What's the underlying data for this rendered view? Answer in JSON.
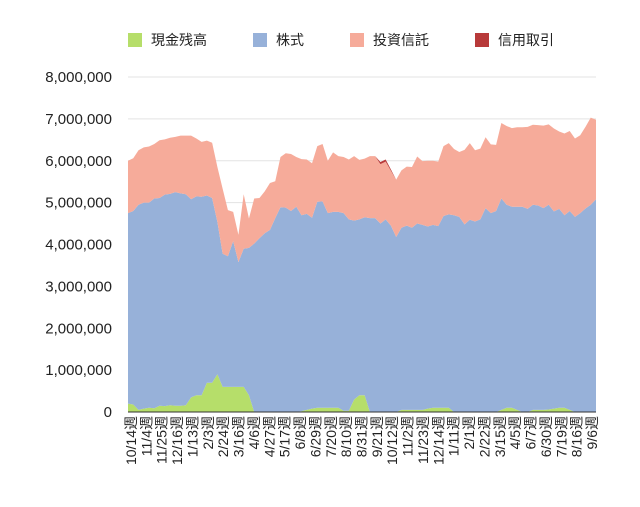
{
  "colors": {
    "cash": "#b6de6a",
    "stocks": "#97b1d9",
    "trusts": "#f6ab9a",
    "margin": "#b83a3a",
    "grid": "#e3e3e3",
    "axis": "#333333",
    "text": "#222222"
  },
  "chart_data": {
    "type": "area",
    "stacked": true,
    "title": "",
    "xlabel": "",
    "ylabel": "",
    "ylim": [
      0,
      8000000
    ],
    "yticks": [
      0,
      1000000,
      2000000,
      3000000,
      4000000,
      5000000,
      6000000,
      7000000,
      8000000
    ],
    "ytick_labels": [
      "0",
      "1,000,000",
      "2,000,000",
      "3,000,000",
      "4,000,000",
      "5,000,000",
      "6,000,000",
      "7,000,000",
      "8,000,000"
    ],
    "grid": true,
    "legend_position": "top",
    "x_tick_labels": [
      "10/14週",
      "11/4週",
      "11/25週",
      "12/16週",
      "1/13週",
      "2/3週",
      "2/24週",
      "3/16週",
      "4/6週",
      "4/27週",
      "5/17週",
      "6/8週",
      "6/29週",
      "7/20週",
      "8/10週",
      "8/31週",
      "9/21週",
      "10/12週",
      "11/2週",
      "11/23週",
      "12/14週",
      "1/11週",
      "2/1週",
      "2/22週",
      "3/15週",
      "4/5週",
      "6/7週",
      "6/30週",
      "7/19週",
      "8/16週",
      "9/6週"
    ],
    "series": [
      {
        "name": "現金残高",
        "values": [
          200000,
          180000,
          50000,
          80000,
          100000,
          90000,
          150000,
          140000,
          160000,
          150000,
          150000,
          160000,
          350000,
          400000,
          400000,
          700000,
          700000,
          900000,
          600000,
          600000,
          600000,
          600000,
          600000,
          400000,
          0,
          0,
          0,
          0,
          0,
          0,
          0,
          0,
          0,
          20000,
          50000,
          80000,
          100000,
          100000,
          100000,
          100000,
          100000,
          30000,
          30000,
          300000,
          400000,
          400000,
          0,
          0,
          0,
          0,
          0,
          0,
          50000,
          50000,
          50000,
          50000,
          50000,
          80000,
          100000,
          100000,
          100000,
          100000,
          0,
          0,
          0,
          0,
          0,
          0,
          0,
          0,
          0,
          50000,
          100000,
          100000,
          50000,
          0,
          0,
          50000,
          50000,
          50000,
          60000,
          80000,
          100000,
          100000,
          50000,
          0,
          0,
          0,
          0,
          0
        ]
      },
      {
        "name": "株式",
        "values": [
          4550000,
          4620000,
          4900000,
          4920000,
          4900000,
          5010000,
          4960000,
          5050000,
          5050000,
          5100000,
          5070000,
          5040000,
          4730000,
          4750000,
          4740000,
          4470000,
          4410000,
          3640000,
          3180000,
          3120000,
          3480000,
          2980000,
          3300000,
          3520000,
          4020000,
          4150000,
          4270000,
          4350000,
          4630000,
          4890000,
          4880000,
          4800000,
          4900000,
          4680000,
          4680000,
          4560000,
          4920000,
          4930000,
          4650000,
          4680000,
          4680000,
          4720000,
          4570000,
          4270000,
          4200000,
          4250000,
          4630000,
          4630000,
          4500000,
          4600000,
          4450000,
          4180000,
          4350000,
          4400000,
          4350000,
          4450000,
          4420000,
          4350000,
          4370000,
          4340000,
          4580000,
          4620000,
          4700000,
          4660000,
          4480000,
          4590000,
          4550000,
          4600000,
          4870000,
          4750000,
          4800000,
          5050000,
          4850000,
          4800000,
          4850000,
          4900000,
          4850000,
          4900000,
          4880000,
          4820000,
          4890000,
          4710000,
          4750000,
          4600000,
          4750000,
          4660000,
          4750000,
          4860000,
          4950000,
          5080000,
          5060000,
          5030000
        ]
      },
      {
        "name": "投資信託",
        "values": [
          1250000,
          1260000,
          1300000,
          1320000,
          1340000,
          1300000,
          1380000,
          1320000,
          1340000,
          1320000,
          1380000,
          1400000,
          1520000,
          1380000,
          1310000,
          1310000,
          1320000,
          1310000,
          1550000,
          1100000,
          700000,
          650000,
          1300000,
          700000,
          1080000,
          960000,
          1000000,
          1120000,
          880000,
          1200000,
          1300000,
          1360000,
          1190000,
          1340000,
          1300000,
          1300000,
          1330000,
          1370000,
          1250000,
          1420000,
          1330000,
          1340000,
          1430000,
          1540000,
          1420000,
          1400000,
          1480000,
          1480000,
          1420000,
          1380000,
          1310000,
          1370000,
          1370000,
          1410000,
          1450000,
          1600000,
          1520000,
          1570000,
          1530000,
          1540000,
          1670000,
          1700000,
          1580000,
          1550000,
          1780000,
          1830000,
          1700000,
          1690000,
          1690000,
          1640000,
          1580000,
          1800000,
          1880000,
          1880000,
          1900000,
          1900000,
          1960000,
          1910000,
          1920000,
          1970000,
          1920000,
          1980000,
          1850000,
          1950000,
          1910000,
          1870000,
          1860000,
          1950000,
          2080000,
          1900000,
          1970000,
          1990000
        ]
      },
      {
        "name": "信用取引",
        "values": [
          0,
          0,
          0,
          0,
          0,
          0,
          0,
          0,
          0,
          0,
          0,
          0,
          0,
          0,
          0,
          0,
          0,
          0,
          0,
          0,
          0,
          0,
          0,
          0,
          0,
          0,
          0,
          0,
          0,
          0,
          0,
          0,
          0,
          0,
          0,
          0,
          0,
          0,
          0,
          0,
          0,
          0,
          0,
          0,
          0,
          0,
          0,
          0,
          50000,
          50000,
          30000,
          0,
          0,
          0,
          0,
          0,
          0,
          0,
          0,
          0,
          0,
          0,
          0,
          0,
          0,
          0,
          0,
          0,
          0,
          0,
          0,
          0,
          0,
          0,
          0,
          0,
          0,
          0,
          0,
          0,
          0,
          0,
          0,
          0,
          0,
          0,
          0,
          0,
          0,
          0,
          0,
          0
        ]
      }
    ]
  }
}
